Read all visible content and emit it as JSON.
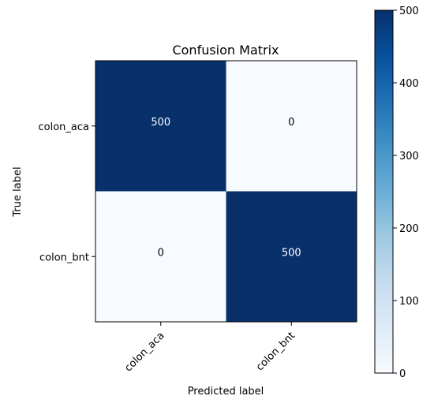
{
  "chart_data": {
    "type": "heatmap",
    "title": "Confusion Matrix",
    "xlabel": "Predicted label",
    "ylabel": "True label",
    "x_categories": [
      "colon_aca",
      "colon_bnt"
    ],
    "y_categories": [
      "colon_aca",
      "colon_bnt"
    ],
    "values": [
      [
        500,
        0
      ],
      [
        0,
        500
      ]
    ],
    "colormap": "Blues",
    "color_low": "#f7fbff",
    "color_high": "#08306b",
    "colorbar": {
      "min": 0,
      "max": 500,
      "ticks": [
        0,
        100,
        200,
        300,
        400,
        500
      ]
    },
    "text_color_dark_cell": "#ffffff",
    "text_color_light_cell": "#000000"
  }
}
